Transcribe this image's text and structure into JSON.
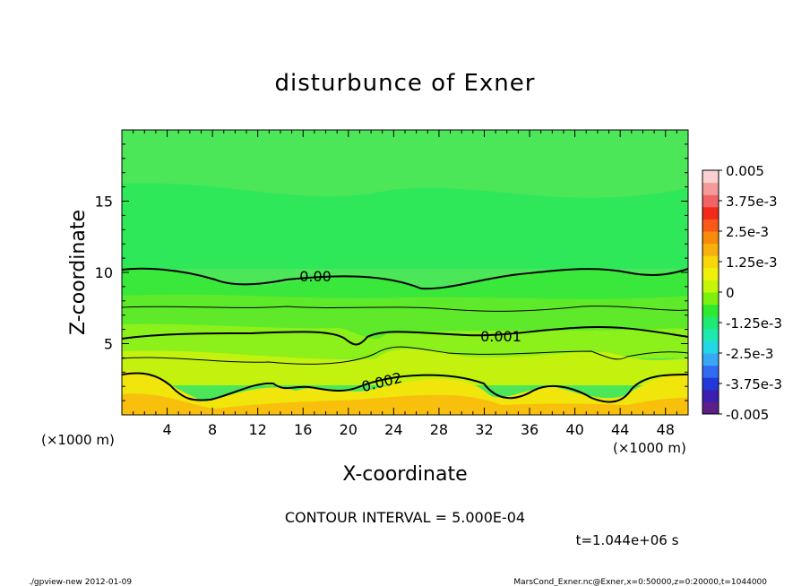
{
  "chart_data": {
    "type": "heatmap",
    "title": "disturbunce of Exner",
    "xlabel": "X-coordinate",
    "ylabel": "Z-coordinate",
    "x_unit_left": "(×1000 m)",
    "x_unit_right": "(×1000 m)",
    "xlim": [
      0,
      50
    ],
    "ylim": [
      0,
      20
    ],
    "x_ticks": [
      "4",
      "8",
      "12",
      "16",
      "20",
      "24",
      "28",
      "32",
      "36",
      "40",
      "44",
      "48"
    ],
    "y_ticks": [
      "5",
      "10",
      "15"
    ],
    "colorbar": {
      "labels": [
        "0.005",
        "3.75e-3",
        "2.5e-3",
        "1.25e-3",
        "0",
        "-1.25e-3",
        "-2.5e-3",
        "-3.75e-3",
        "-0.005"
      ],
      "range": [
        -0.005,
        0.005
      ],
      "colors": [
        "#5c1f8a",
        "#3a1fb0",
        "#2238d8",
        "#2f6cf2",
        "#38a8f5",
        "#24d7e6",
        "#1ee8b0",
        "#1eea72",
        "#2eea2e",
        "#7ef00f",
        "#c4f50a",
        "#eef20a",
        "#f8d80a",
        "#f8b00c",
        "#f88a0c",
        "#f85818",
        "#f22a1a",
        "#f26464",
        "#f59a9a",
        "#fbd0d0"
      ]
    },
    "contour_interval": "CONTOUR INTERVAL = 5.000E-04",
    "contour_labels": [
      "0.00",
      "0.001",
      "0.002"
    ],
    "time_label": "t=1.044e+06 s",
    "footer_left": "./gpview-new   2012-01-09",
    "footer_right": "MarsCond_Exner.nc@Exner,x=0:50000,z=0:20000,t=1044000"
  }
}
